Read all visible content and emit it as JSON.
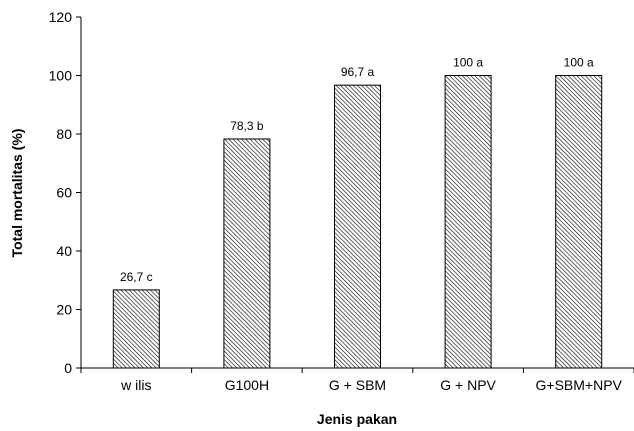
{
  "chart_data": {
    "type": "bar",
    "title": "",
    "xlabel": "Jenis pakan",
    "ylabel": "Total mortalitas (%)",
    "ylim": [
      0,
      120
    ],
    "yticks": [
      0,
      20,
      40,
      60,
      80,
      100,
      120
    ],
    "grid": false,
    "categories": [
      "w ilis",
      "G100H",
      "G + SBM",
      "G + NPV",
      "G+SBM+NPV"
    ],
    "values": [
      26.7,
      78.3,
      96.7,
      100,
      100
    ],
    "data_labels": [
      "26,7 c",
      "78,3 b",
      "96,7 a",
      "100 a",
      "100 a"
    ],
    "bar_fill": "hatched"
  }
}
